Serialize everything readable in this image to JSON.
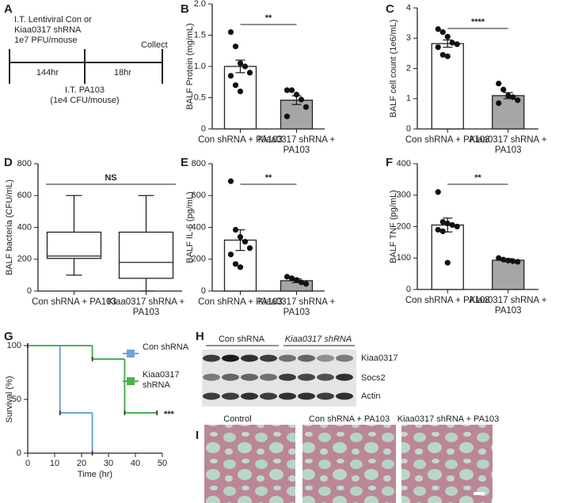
{
  "figure": {
    "panel_a": {
      "letter": "A",
      "lines": [
        "I.T. Lentiviral Con or",
        "Kiaa0317 shRNA",
        "1e7 PFU/mouse"
      ],
      "collect": "Collect",
      "interval_1": "144hr",
      "interval_2": "18hr",
      "challenge": [
        "I.T. PA103",
        "(1e4 CFU/mouse)"
      ]
    },
    "panel_h": {
      "letter": "H",
      "groups": [
        "Con shRNA",
        "Kiaa0317 shRNA"
      ],
      "rows": [
        "Kiaa0317",
        "Socs2",
        "Actin"
      ]
    },
    "panel_i": {
      "letter": "I",
      "images": [
        "Control",
        "Con shRNA + PA103",
        "Kiaa0317 shRNA + PA103"
      ]
    }
  },
  "chart_data": [
    {
      "type": "bar",
      "panel": "B",
      "ylabel": "BALF Protein (mg/mL)",
      "categories": [
        "Con shRNA + PA103",
        "Kiaa0317 shRNA + PA103"
      ],
      "values": [
        1.0,
        0.46
      ],
      "errors": [
        0.1,
        0.07
      ],
      "colors": [
        "#ffffff",
        "#a6a6a6"
      ],
      "points": [
        [
          1.55,
          1.32,
          1.05,
          1.0,
          0.9,
          0.85,
          0.7,
          0.6
        ],
        [
          0.62,
          0.62,
          0.55,
          0.47,
          0.35,
          0.2
        ]
      ],
      "significance": "**",
      "ylim": [
        0,
        2
      ],
      "yticks": [
        0,
        0.5,
        {
          "value": 1,
          "label": "1.0"
        },
        1.5,
        {
          "value": 2,
          "label": "2.0"
        }
      ]
    },
    {
      "type": "bar",
      "panel": "C",
      "ylabel": "BALF cell count (1e6/mL)",
      "categories": [
        "Con shRNA + PA103",
        "Kiaa0317 shRNA + PA103"
      ],
      "values": [
        2.82,
        1.1
      ],
      "errors": [
        0.12,
        0.1
      ],
      "colors": [
        "#ffffff",
        "#a6a6a6"
      ],
      "points": [
        [
          3.3,
          3.2,
          3.05,
          2.85,
          2.8,
          2.7,
          2.45,
          2.4
        ],
        [
          1.5,
          1.3,
          1.1,
          1.05,
          0.95,
          0.85
        ]
      ],
      "significance": "****",
      "ylim": [
        0,
        4
      ],
      "yticks": [
        0,
        1,
        2,
        3,
        4
      ]
    },
    {
      "type": "box",
      "panel": "D",
      "ylabel": "BALF bacteria (CFU/mL)",
      "categories": [
        "Con shRNA + PA103",
        "Kiaa0317 shRNA + PA103"
      ],
      "boxes": [
        {
          "min": 100,
          "q1": 205,
          "median": 220,
          "q3": 370,
          "max": 600
        },
        {
          "min": 0,
          "q1": 80,
          "median": 180,
          "q3": 370,
          "max": 600
        }
      ],
      "significance": "NS",
      "ylim": [
        0,
        800
      ],
      "yticks": [
        0,
        200,
        400,
        600,
        800
      ]
    },
    {
      "type": "bar",
      "panel": "E",
      "ylabel": "BALF IL-6 (pg/mL)",
      "categories": [
        "Con shRNA + PA103",
        "Kiaa0317 shRNA + PA103"
      ],
      "values": [
        320,
        65
      ],
      "errors": [
        65,
        12
      ],
      "colors": [
        "#ffffff",
        "#a6a6a6"
      ],
      "points": [
        [
          690,
          385,
          340,
          310,
          270,
          230,
          170,
          150
        ],
        [
          90,
          80,
          70,
          55,
          45
        ]
      ],
      "significance": "**",
      "ylim": [
        0,
        800
      ],
      "yticks": [
        0,
        200,
        400,
        600,
        800
      ]
    },
    {
      "type": "bar",
      "panel": "F",
      "ylabel": "BALF TNF (pg/mL)",
      "categories": [
        "Con shRNA + PA103",
        "Kiaa0317 shRNA + PA103"
      ],
      "values": [
        205,
        93
      ],
      "errors": [
        22,
        5
      ],
      "colors": [
        "#ffffff",
        "#a6a6a6"
      ],
      "points": [
        [
          310,
          215,
          210,
          205,
          200,
          190,
          185,
          85
        ],
        [
          100,
          95,
          92,
          90,
          88
        ]
      ],
      "significance": "**",
      "ylim": [
        0,
        400
      ],
      "yticks": [
        0,
        100,
        200,
        300,
        400
      ]
    },
    {
      "type": "line",
      "step": true,
      "panel": "G",
      "ylabel": "Survival (%)",
      "xlabel": "Time (hr)",
      "series": [
        {
          "name": "Con shRNA",
          "color": "#6fa3d8",
          "x": [
            0,
            12,
            24
          ],
          "values": [
            100,
            37.5,
            0
          ]
        },
        {
          "name": "Kiaa0317 shRNA",
          "color": "#4cb050",
          "x": [
            0,
            24,
            36,
            48
          ],
          "values": [
            100,
            87.5,
            37.5,
            37.5
          ]
        }
      ],
      "annotation": "***",
      "legend": "right",
      "xlim": [
        0,
        50
      ],
      "xticks": [
        0,
        10,
        20,
        30,
        40,
        50
      ],
      "ylim": [
        0,
        100
      ],
      "yticks": [
        0,
        50,
        100
      ]
    }
  ]
}
